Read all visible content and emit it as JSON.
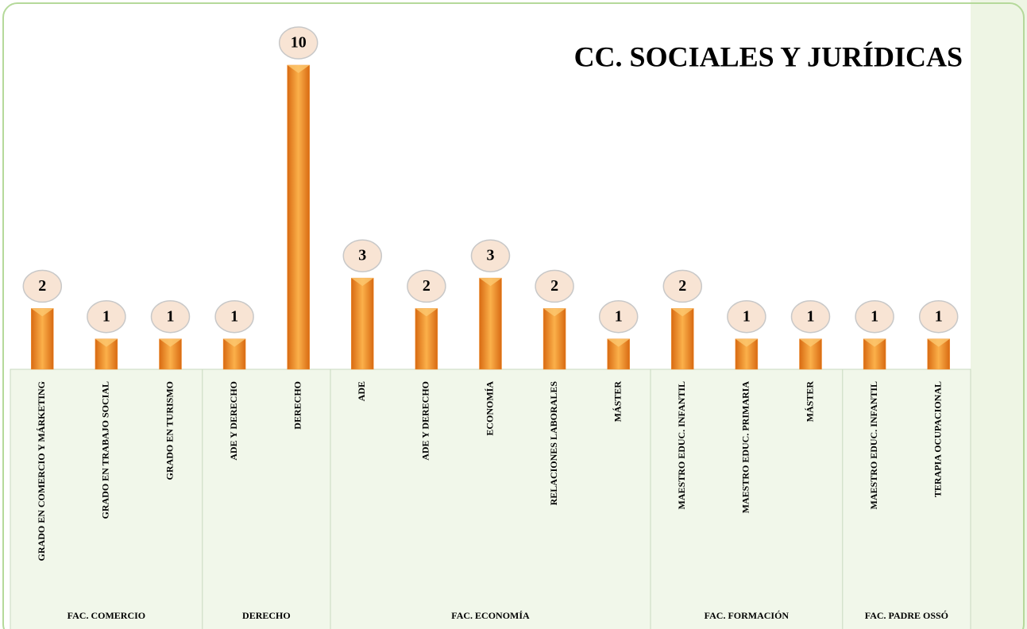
{
  "chart_data": {
    "type": "bar",
    "title": "CC. SOCIALES Y JURÍDICAS",
    "categories": [
      "GRADO EN COMERCIO Y MÁRKETING",
      "GRADO EN TRABAJO SOCIAL",
      "GRADO EN TURISMO",
      "ADE Y DERECHO",
      "DERECHO",
      "ADE",
      "ADE Y DERECHO",
      "ECONOMÍA",
      "RELACIONES LABORALES",
      "MÁSTER",
      "MAESTRO EDUC. INFANTIL",
      "MAESTRO EDUC. PRIMARIA",
      "MÁSTER",
      "MAESTRO EDUC. INFANTIL",
      "TERAPIA OCUPACIONAL"
    ],
    "groups": [
      {
        "name": "FAC. COMERCIO",
        "size": 3
      },
      {
        "name": "DERECHO",
        "size": 2
      },
      {
        "name": "FAC. ECONOMÍA",
        "size": 5
      },
      {
        "name": "FAC. FORMACIÓN",
        "size": 3
      },
      {
        "name": "FAC. PADRE OSSÓ",
        "size": 2
      }
    ],
    "values": [
      2,
      1,
      1,
      1,
      10,
      3,
      2,
      3,
      2,
      1,
      2,
      1,
      1,
      1,
      1
    ],
    "color": "#f29030"
  }
}
